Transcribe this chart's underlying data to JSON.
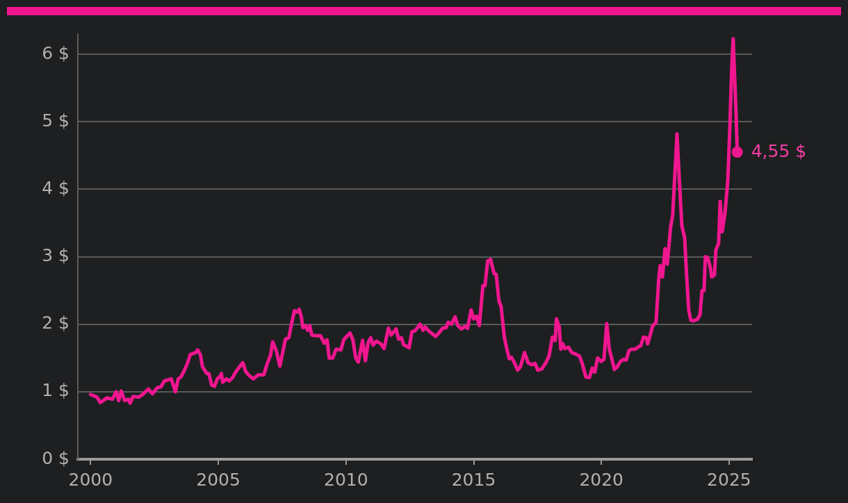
{
  "chart_data": {
    "type": "line",
    "color": "#f0168f",
    "grid": "y",
    "marker": "none",
    "line_style": "solid",
    "legend": false,
    "xlim": [
      1999.5,
      2025.9
    ],
    "xticks": [
      2000,
      2005,
      2010,
      2015,
      2020,
      2025
    ],
    "ylim": [
      0,
      6.3
    ],
    "yticks": [
      {
        "value": 0,
        "label": "0 $"
      },
      {
        "value": 1,
        "label": "1 $"
      },
      {
        "value": 2,
        "label": "2 $"
      },
      {
        "value": 3,
        "label": "3 $"
      },
      {
        "value": 4,
        "label": "4 $"
      },
      {
        "value": 5,
        "label": "5 $"
      },
      {
        "value": 6,
        "label": "6 $"
      }
    ],
    "annotations": [
      {
        "text": "4,55 $",
        "x": 2025.32,
        "y": 4.55
      }
    ],
    "x": [
      2000.0,
      2000.25,
      2000.38,
      2000.65,
      2000.85,
      2001.0,
      2001.1,
      2001.2,
      2001.33,
      2001.47,
      2001.55,
      2001.66,
      2001.88,
      2002.04,
      2002.26,
      2002.42,
      2002.61,
      2002.75,
      2002.89,
      2003.16,
      2003.32,
      2003.43,
      2003.54,
      2003.65,
      2003.79,
      2003.9,
      2004.11,
      2004.19,
      2004.3,
      2004.38,
      2004.55,
      2004.63,
      2004.74,
      2004.85,
      2004.96,
      2005.07,
      2005.12,
      2005.17,
      2005.31,
      2005.42,
      2005.56,
      2005.66,
      2005.83,
      2005.96,
      2006.07,
      2006.21,
      2006.37,
      2006.56,
      2006.78,
      2006.92,
      2007.05,
      2007.13,
      2007.27,
      2007.41,
      2007.63,
      2007.76,
      2007.87,
      2007.98,
      2008.09,
      2008.17,
      2008.25,
      2008.31,
      2008.41,
      2008.5,
      2008.58,
      2008.66,
      2008.82,
      2009.0,
      2009.15,
      2009.26,
      2009.34,
      2009.48,
      2009.61,
      2009.8,
      2009.91,
      2010.05,
      2010.16,
      2010.27,
      2010.38,
      2010.48,
      2010.65,
      2010.76,
      2010.87,
      2010.97,
      2011.06,
      2011.19,
      2011.36,
      2011.49,
      2011.66,
      2011.77,
      2011.96,
      2012.06,
      2012.17,
      2012.25,
      2012.47,
      2012.58,
      2012.69,
      2012.8,
      2012.91,
      2013.02,
      2013.1,
      2013.24,
      2013.37,
      2013.51,
      2013.64,
      2013.78,
      2013.92,
      2014.0,
      2014.13,
      2014.27,
      2014.38,
      2014.52,
      2014.65,
      2014.76,
      2014.9,
      2015.0,
      2015.11,
      2015.22,
      2015.36,
      2015.44,
      2015.55,
      2015.66,
      2015.8,
      2015.88,
      2015.99,
      2016.07,
      2016.2,
      2016.31,
      2016.39,
      2016.48,
      2016.58,
      2016.72,
      2016.83,
      2016.99,
      2017.13,
      2017.27,
      2017.4,
      2017.51,
      2017.67,
      2017.84,
      2017.95,
      2018.08,
      2018.19,
      2018.24,
      2018.35,
      2018.41,
      2018.49,
      2018.57,
      2018.71,
      2018.84,
      2018.98,
      2019.14,
      2019.25,
      2019.39,
      2019.53,
      2019.64,
      2019.74,
      2019.85,
      2019.99,
      2020.1,
      2020.21,
      2020.31,
      2020.4,
      2020.51,
      2020.62,
      2020.75,
      2020.86,
      2020.97,
      2021.08,
      2021.18,
      2021.32,
      2021.43,
      2021.54,
      2021.65,
      2021.76,
      2021.81,
      2021.92,
      2022.0,
      2022.14,
      2022.25,
      2022.3,
      2022.39,
      2022.49,
      2022.58,
      2022.71,
      2022.79,
      2022.96,
      2023.04,
      2023.15,
      2023.26,
      2023.34,
      2023.42,
      2023.5,
      2023.58,
      2023.75,
      2023.86,
      2023.94,
      2024.02,
      2024.07,
      2024.16,
      2024.26,
      2024.32,
      2024.43,
      2024.48,
      2024.59,
      2024.65,
      2024.73,
      2024.84,
      2024.95,
      2025.03,
      2025.11,
      2025.16,
      2025.27,
      2025.32
    ],
    "values": [
      0.96,
      0.92,
      0.84,
      0.91,
      0.89,
      1.0,
      0.87,
      1.01,
      0.87,
      0.89,
      0.83,
      0.93,
      0.92,
      0.96,
      1.04,
      0.97,
      1.06,
      1.07,
      1.16,
      1.19,
      1.0,
      1.19,
      1.22,
      1.3,
      1.42,
      1.55,
      1.58,
      1.62,
      1.55,
      1.37,
      1.27,
      1.27,
      1.1,
      1.08,
      1.19,
      1.23,
      1.27,
      1.14,
      1.19,
      1.16,
      1.21,
      1.28,
      1.37,
      1.43,
      1.3,
      1.24,
      1.19,
      1.25,
      1.25,
      1.42,
      1.55,
      1.74,
      1.61,
      1.38,
      1.78,
      1.8,
      2.01,
      2.2,
      2.18,
      2.22,
      2.11,
      1.95,
      1.98,
      1.91,
      1.98,
      1.84,
      1.83,
      1.83,
      1.72,
      1.77,
      1.5,
      1.5,
      1.63,
      1.62,
      1.77,
      1.83,
      1.87,
      1.77,
      1.5,
      1.44,
      1.76,
      1.46,
      1.73,
      1.8,
      1.69,
      1.75,
      1.71,
      1.64,
      1.94,
      1.84,
      1.93,
      1.78,
      1.8,
      1.7,
      1.65,
      1.89,
      1.9,
      1.95,
      2.0,
      1.91,
      1.96,
      1.9,
      1.86,
      1.82,
      1.87,
      1.94,
      1.95,
      2.03,
      2.0,
      2.11,
      1.98,
      1.93,
      1.97,
      1.94,
      2.21,
      2.08,
      2.12,
      1.98,
      2.57,
      2.57,
      2.94,
      2.96,
      2.75,
      2.74,
      2.34,
      2.27,
      1.81,
      1.61,
      1.49,
      1.51,
      1.44,
      1.32,
      1.37,
      1.58,
      1.43,
      1.4,
      1.42,
      1.32,
      1.34,
      1.44,
      1.53,
      1.81,
      1.76,
      2.08,
      1.96,
      1.63,
      1.71,
      1.64,
      1.66,
      1.58,
      1.56,
      1.53,
      1.42,
      1.22,
      1.21,
      1.35,
      1.29,
      1.5,
      1.45,
      1.48,
      2.01,
      1.63,
      1.5,
      1.33,
      1.37,
      1.45,
      1.48,
      1.47,
      1.61,
      1.63,
      1.63,
      1.66,
      1.68,
      1.81,
      1.8,
      1.71,
      1.85,
      1.97,
      2.03,
      2.7,
      2.87,
      2.7,
      3.12,
      2.89,
      3.44,
      3.61,
      4.82,
      4.23,
      3.46,
      3.28,
      2.7,
      2.21,
      2.06,
      2.05,
      2.07,
      2.14,
      2.5,
      2.5,
      3.0,
      2.99,
      2.85,
      2.7,
      2.73,
      3.1,
      3.2,
      3.82,
      3.37,
      3.65,
      4.13,
      4.93,
      5.87,
      6.23,
      5.15,
      4.55
    ]
  }
}
